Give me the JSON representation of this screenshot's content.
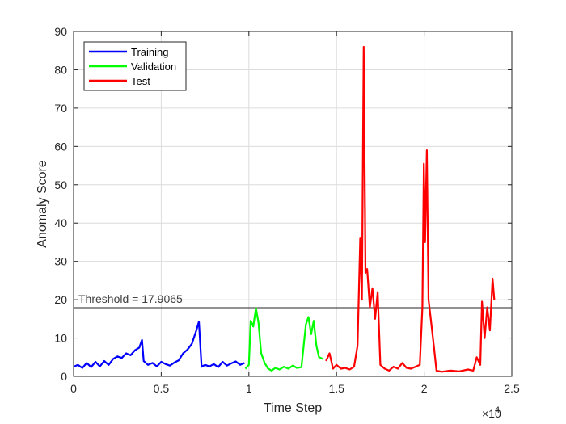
{
  "chart_data": {
    "type": "line",
    "title": "",
    "xlabel": "Time Step",
    "ylabel": "Anomaly Score",
    "x_exponent_label": "×10",
    "x_exponent_power": "4",
    "xlim": [
      0,
      25000
    ],
    "ylim": [
      0,
      90
    ],
    "grid": true,
    "legend_position": "top-left",
    "x_ticks": [
      0,
      5000,
      10000,
      15000,
      20000,
      25000
    ],
    "x_tick_labels": [
      "0",
      "0.5",
      "1",
      "1.5",
      "2",
      "2.5"
    ],
    "y_ticks": [
      0,
      10,
      20,
      30,
      40,
      50,
      60,
      70,
      80,
      90
    ],
    "y_tick_labels": [
      "0",
      "10",
      "20",
      "30",
      "40",
      "50",
      "60",
      "70",
      "80",
      "90"
    ],
    "threshold": {
      "value": 17.9065,
      "label": "Threshold = 17.9065"
    },
    "series": [
      {
        "name": "Training",
        "color": "#0000ff",
        "x": [
          0,
          250,
          500,
          750,
          1000,
          1250,
          1500,
          1750,
          2000,
          2250,
          2500,
          2750,
          3000,
          3250,
          3500,
          3750,
          3900,
          4000,
          4250,
          4500,
          4750,
          5000,
          5250,
          5500,
          5750,
          6000,
          6250,
          6500,
          6750,
          7000,
          7150,
          7300,
          7500,
          7750,
          8000,
          8250,
          8500,
          8750,
          9000,
          9250,
          9500,
          9750
        ],
        "y": [
          2.5,
          3.0,
          2.2,
          3.5,
          2.4,
          3.8,
          2.6,
          4.0,
          3.0,
          4.5,
          5.2,
          4.8,
          6.0,
          5.5,
          6.8,
          7.5,
          9.5,
          4.0,
          3.0,
          3.5,
          2.6,
          3.8,
          3.2,
          2.8,
          3.6,
          4.2,
          6.0,
          7.0,
          8.5,
          12.0,
          14.3,
          2.5,
          3.0,
          2.6,
          3.2,
          2.4,
          3.8,
          2.8,
          3.4,
          3.9,
          3.0,
          3.5
        ]
      },
      {
        "name": "Validation",
        "color": "#00ff00",
        "x": [
          9800,
          10000,
          10100,
          10250,
          10400,
          10550,
          10700,
          10900,
          11100,
          11300,
          11500,
          11750,
          12000,
          12250,
          12500,
          12750,
          13000,
          13250,
          13400,
          13550,
          13700,
          13850,
          14000,
          14250
        ],
        "y": [
          2.0,
          3.0,
          14.5,
          13.0,
          17.8,
          14.0,
          6.0,
          3.5,
          2.0,
          1.5,
          2.2,
          1.8,
          2.5,
          2.0,
          2.8,
          2.2,
          2.4,
          13.5,
          15.5,
          11.0,
          14.5,
          8.0,
          5.0,
          4.5
        ]
      },
      {
        "name": "Test",
        "color": "#ff0000",
        "x": [
          14400,
          14600,
          14800,
          15000,
          15250,
          15500,
          15750,
          16000,
          16200,
          16350,
          16450,
          16550,
          16650,
          16750,
          16900,
          17050,
          17200,
          17350,
          17500,
          17750,
          18000,
          18250,
          18500,
          18750,
          19000,
          19250,
          19500,
          19750,
          19900,
          19980,
          20050,
          20150,
          20250,
          20400,
          20550,
          20700,
          21000,
          21500,
          22000,
          22500,
          22800,
          23000,
          23200,
          23300,
          23450,
          23600,
          23750,
          23900,
          24000
        ],
        "y": [
          4.0,
          6.0,
          2.0,
          3.0,
          2.0,
          2.2,
          1.8,
          2.5,
          8.0,
          36.0,
          20.0,
          86.0,
          27.0,
          28.0,
          18.0,
          23.0,
          15.0,
          22.0,
          3.0,
          2.0,
          1.5,
          2.5,
          2.0,
          3.5,
          2.2,
          2.0,
          2.5,
          3.0,
          18.0,
          55.5,
          35.0,
          59.0,
          20.0,
          14.0,
          8.0,
          1.5,
          1.2,
          1.5,
          1.3,
          1.8,
          1.5,
          5.0,
          3.0,
          19.5,
          10.0,
          18.0,
          12.0,
          25.5,
          20.0
        ]
      }
    ]
  }
}
